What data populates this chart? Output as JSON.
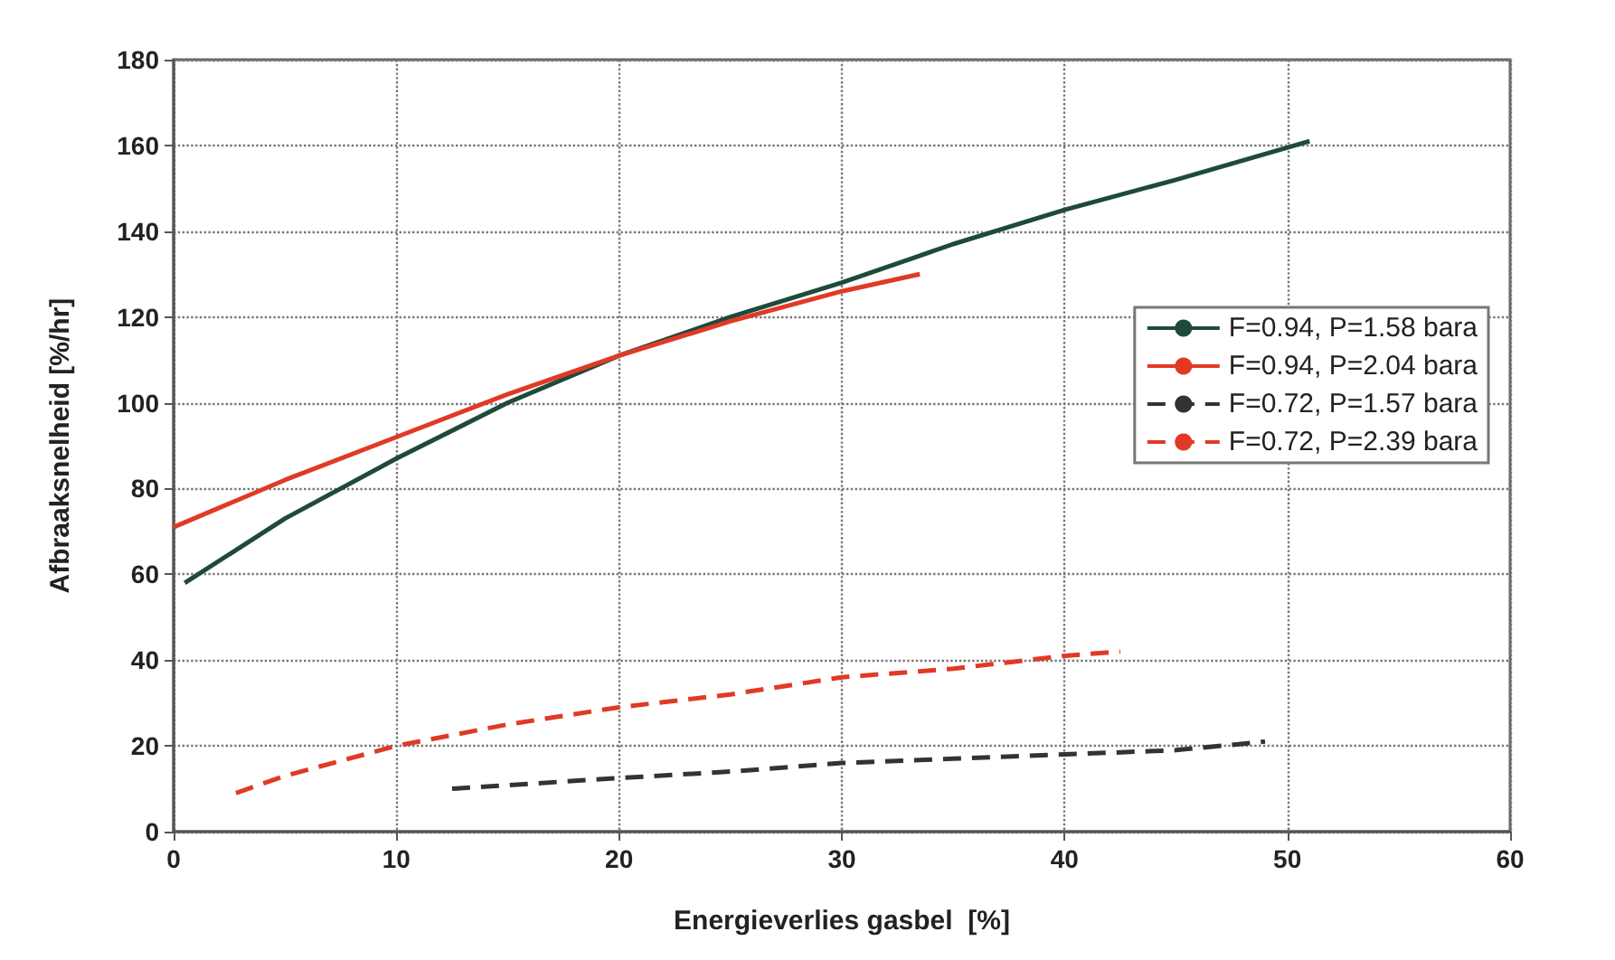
{
  "chart_data": {
    "type": "line",
    "xlabel": "Energieverlies gasbel  [%]",
    "ylabel": "Afbraaksnelheid [%/hr]",
    "xlim": [
      0,
      60
    ],
    "xticks": [
      0,
      10,
      20,
      30,
      40,
      50,
      60
    ],
    "ylim": [
      0,
      180
    ],
    "yticks": [
      0,
      20,
      40,
      60,
      80,
      100,
      120,
      140,
      160,
      180
    ],
    "grid": true,
    "legend": "right",
    "marker": "none",
    "series": [
      {
        "name": "F=0.94, P=1.58 bara",
        "color": "#1f4a3a",
        "line_style": "solid",
        "x": [
          0.5,
          5,
          10,
          15,
          20,
          25,
          30,
          35,
          40,
          45,
          51
        ],
        "values": [
          58,
          73,
          87,
          100,
          111,
          120,
          128,
          137,
          145,
          152,
          161
        ]
      },
      {
        "name": "F=0.94, P=2.04 bara",
        "color": "#e03a26",
        "line_style": "solid",
        "x": [
          0,
          5,
          10,
          15,
          20,
          25,
          30,
          33.5
        ],
        "values": [
          71,
          82,
          92,
          102,
          111,
          119,
          126,
          130
        ]
      },
      {
        "name": "F=0.72, P=1.57 bara",
        "color": "#333333",
        "line_style": "dashed",
        "x": [
          12.5,
          20,
          25,
          30,
          35,
          40,
          45,
          49
        ],
        "values": [
          10,
          12.5,
          14,
          16,
          17,
          18,
          19,
          21
        ]
      },
      {
        "name": "F=0.72, P=2.39 bara",
        "color": "#e03a26",
        "line_style": "dashed",
        "x": [
          2.8,
          5,
          10,
          15,
          20,
          25,
          30,
          35,
          40,
          42.5
        ],
        "values": [
          9,
          13,
          20,
          25,
          29,
          32,
          36,
          38,
          41,
          42
        ]
      }
    ]
  }
}
